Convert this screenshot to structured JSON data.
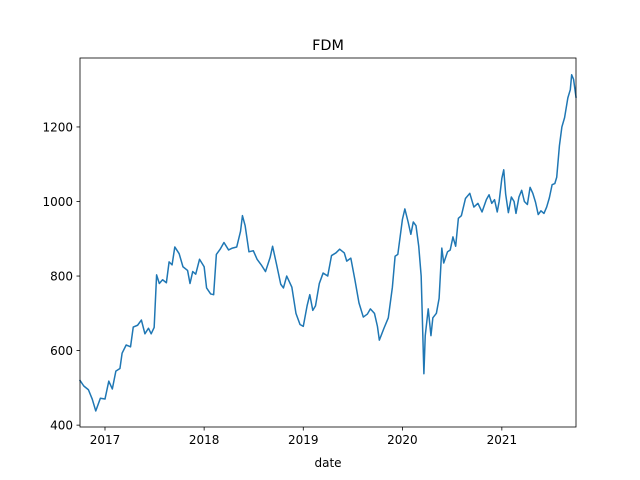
{
  "chart_data": {
    "type": "line",
    "title": "FDM",
    "xlabel": "date",
    "ylabel": "",
    "xlim": [
      "2016-10-01",
      "2021-10-01"
    ],
    "ylim": [
      395,
      1385
    ],
    "grid": false,
    "legend": "none",
    "x_ticks": [
      "2017-01-01",
      "2018-01-01",
      "2019-01-01",
      "2020-01-01",
      "2021-01-01"
    ],
    "x_tick_labels": [
      "2017",
      "2018",
      "2019",
      "2020",
      "2021"
    ],
    "y_ticks": [
      400,
      600,
      800,
      1000,
      1200
    ],
    "y_tick_labels": [
      "400",
      "600",
      "800",
      "1000",
      "1200"
    ],
    "series": [
      {
        "name": "",
        "color": "#1f77b4",
        "points": [
          [
            "2016-10-01",
            520
          ],
          [
            "2016-10-15",
            505
          ],
          [
            "2016-11-01",
            495
          ],
          [
            "2016-11-15",
            470
          ],
          [
            "2016-11-28",
            438
          ],
          [
            "2016-12-15",
            472
          ],
          [
            "2017-01-01",
            470
          ],
          [
            "2017-01-15",
            518
          ],
          [
            "2017-01-28",
            497
          ],
          [
            "2017-02-10",
            545
          ],
          [
            "2017-02-25",
            552
          ],
          [
            "2017-03-05",
            593
          ],
          [
            "2017-03-20",
            615
          ],
          [
            "2017-04-05",
            610
          ],
          [
            "2017-04-15",
            663
          ],
          [
            "2017-05-01",
            668
          ],
          [
            "2017-05-15",
            682
          ],
          [
            "2017-05-28",
            645
          ],
          [
            "2017-06-10",
            660
          ],
          [
            "2017-06-20",
            645
          ],
          [
            "2017-07-01",
            662
          ],
          [
            "2017-07-10",
            803
          ],
          [
            "2017-07-20",
            780
          ],
          [
            "2017-08-01",
            790
          ],
          [
            "2017-08-15",
            782
          ],
          [
            "2017-08-25",
            838
          ],
          [
            "2017-09-05",
            830
          ],
          [
            "2017-09-15",
            878
          ],
          [
            "2017-10-01",
            860
          ],
          [
            "2017-10-15",
            825
          ],
          [
            "2017-11-01",
            815
          ],
          [
            "2017-11-10",
            780
          ],
          [
            "2017-11-20",
            812
          ],
          [
            "2017-12-01",
            805
          ],
          [
            "2017-12-15",
            845
          ],
          [
            "2018-01-01",
            825
          ],
          [
            "2018-01-10",
            768
          ],
          [
            "2018-01-25",
            752
          ],
          [
            "2018-02-05",
            750
          ],
          [
            "2018-02-15",
            858
          ],
          [
            "2018-03-01",
            872
          ],
          [
            "2018-03-15",
            890
          ],
          [
            "2018-04-01",
            870
          ],
          [
            "2018-04-15",
            875
          ],
          [
            "2018-05-01",
            878
          ],
          [
            "2018-05-15",
            920
          ],
          [
            "2018-05-22",
            962
          ],
          [
            "2018-06-01",
            935
          ],
          [
            "2018-06-15",
            865
          ],
          [
            "2018-07-01",
            868
          ],
          [
            "2018-07-15",
            845
          ],
          [
            "2018-08-01",
            828
          ],
          [
            "2018-08-15",
            812
          ],
          [
            "2018-09-01",
            850
          ],
          [
            "2018-09-10",
            880
          ],
          [
            "2018-09-25",
            830
          ],
          [
            "2018-10-10",
            778
          ],
          [
            "2018-10-20",
            768
          ],
          [
            "2018-11-01",
            800
          ],
          [
            "2018-11-20",
            770
          ],
          [
            "2018-12-05",
            700
          ],
          [
            "2018-12-20",
            670
          ],
          [
            "2019-01-01",
            665
          ],
          [
            "2019-01-15",
            720
          ],
          [
            "2019-01-25",
            750
          ],
          [
            "2019-02-05",
            708
          ],
          [
            "2019-02-15",
            720
          ],
          [
            "2019-03-01",
            780
          ],
          [
            "2019-03-15",
            808
          ],
          [
            "2019-04-01",
            800
          ],
          [
            "2019-04-15",
            855
          ],
          [
            "2019-05-01",
            862
          ],
          [
            "2019-05-15",
            872
          ],
          [
            "2019-06-01",
            862
          ],
          [
            "2019-06-10",
            840
          ],
          [
            "2019-06-25",
            848
          ],
          [
            "2019-07-10",
            790
          ],
          [
            "2019-07-25",
            728
          ],
          [
            "2019-08-10",
            690
          ],
          [
            "2019-08-25",
            698
          ],
          [
            "2019-09-05",
            712
          ],
          [
            "2019-09-20",
            700
          ],
          [
            "2019-10-01",
            665
          ],
          [
            "2019-10-08",
            628
          ],
          [
            "2019-10-25",
            660
          ],
          [
            "2019-11-10",
            688
          ],
          [
            "2019-11-25",
            770
          ],
          [
            "2019-12-05",
            853
          ],
          [
            "2019-12-15",
            858
          ],
          [
            "2020-01-01",
            952
          ],
          [
            "2020-01-10",
            980
          ],
          [
            "2020-01-22",
            945
          ],
          [
            "2020-02-01",
            912
          ],
          [
            "2020-02-10",
            945
          ],
          [
            "2020-02-20",
            935
          ],
          [
            "2020-03-01",
            880
          ],
          [
            "2020-03-10",
            800
          ],
          [
            "2020-03-20",
            538
          ],
          [
            "2020-03-25",
            640
          ],
          [
            "2020-04-05",
            712
          ],
          [
            "2020-04-15",
            640
          ],
          [
            "2020-04-22",
            688
          ],
          [
            "2020-05-05",
            700
          ],
          [
            "2020-05-15",
            740
          ],
          [
            "2020-05-25",
            875
          ],
          [
            "2020-06-01",
            835
          ],
          [
            "2020-06-15",
            865
          ],
          [
            "2020-06-25",
            870
          ],
          [
            "2020-07-05",
            905
          ],
          [
            "2020-07-15",
            880
          ],
          [
            "2020-07-25",
            955
          ],
          [
            "2020-08-05",
            962
          ],
          [
            "2020-08-20",
            1008
          ],
          [
            "2020-09-05",
            1022
          ],
          [
            "2020-09-20",
            985
          ],
          [
            "2020-10-05",
            995
          ],
          [
            "2020-10-20",
            972
          ],
          [
            "2020-11-05",
            1005
          ],
          [
            "2020-11-15",
            1018
          ],
          [
            "2020-11-25",
            995
          ],
          [
            "2020-12-05",
            1005
          ],
          [
            "2020-12-15",
            972
          ],
          [
            "2020-12-22",
            1000
          ],
          [
            "2021-01-01",
            1062
          ],
          [
            "2021-01-08",
            1085
          ],
          [
            "2021-01-15",
            1020
          ],
          [
            "2021-01-25",
            970
          ],
          [
            "2021-02-05",
            1012
          ],
          [
            "2021-02-15",
            1000
          ],
          [
            "2021-02-22",
            968
          ],
          [
            "2021-03-05",
            1012
          ],
          [
            "2021-03-15",
            1030
          ],
          [
            "2021-03-25",
            1000
          ],
          [
            "2021-04-05",
            992
          ],
          [
            "2021-04-15",
            1038
          ],
          [
            "2021-04-25",
            1022
          ],
          [
            "2021-05-05",
            998
          ],
          [
            "2021-05-15",
            965
          ],
          [
            "2021-05-25",
            975
          ],
          [
            "2021-06-05",
            968
          ],
          [
            "2021-06-15",
            985
          ],
          [
            "2021-06-25",
            1010
          ],
          [
            "2021-07-05",
            1045
          ],
          [
            "2021-07-15",
            1048
          ],
          [
            "2021-07-22",
            1065
          ],
          [
            "2021-08-01",
            1150
          ],
          [
            "2021-08-10",
            1200
          ],
          [
            "2021-08-20",
            1225
          ],
          [
            "2021-09-01",
            1278
          ],
          [
            "2021-09-10",
            1300
          ],
          [
            "2021-09-15",
            1340
          ],
          [
            "2021-09-22",
            1328
          ],
          [
            "2021-10-01",
            1280
          ]
        ]
      }
    ]
  }
}
